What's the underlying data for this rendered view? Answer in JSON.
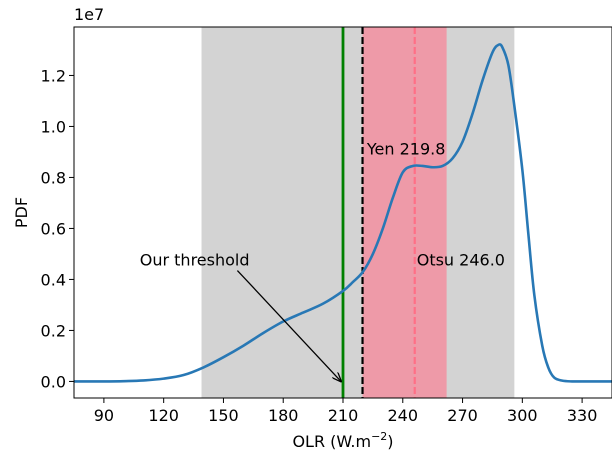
{
  "chart_data": {
    "type": "line",
    "title": "",
    "xlabel_main": "OLR (W.m",
    "xlabel_sup": "−2",
    "xlabel_close": ")",
    "ylabel": "PDF",
    "y_scale_label": "1e7",
    "xlim": [
      75,
      345
    ],
    "ylim": [
      -0.065,
      1.39
    ],
    "xticks": [
      90,
      120,
      150,
      180,
      210,
      240,
      270,
      300,
      330
    ],
    "xtick_labels": [
      "90",
      "120",
      "150",
      "180",
      "210",
      "240",
      "270",
      "300",
      "330"
    ],
    "yticks": [
      0.0,
      0.2,
      0.4,
      0.6,
      0.8,
      1.0,
      1.2
    ],
    "ytick_labels": [
      "0.0",
      "0.2",
      "0.4",
      "0.6",
      "0.8",
      "1.0",
      "1.2"
    ],
    "grid": false,
    "colors": {
      "curve": "#2878b5",
      "gray_band": "#d3d3d3",
      "pink_band": "#ee9aa8",
      "green_line": "#008000",
      "yen_line": "#000000",
      "otsu_line": "#ff6f86",
      "arrow": "#000000"
    },
    "series": [
      {
        "x": [
          75,
          90,
          100,
          110,
          120,
          130,
          140,
          150,
          160,
          170,
          180,
          190,
          200,
          210,
          215,
          220,
          225,
          230,
          235,
          240,
          245,
          250,
          255,
          260,
          265,
          270,
          275,
          280,
          285,
          288,
          290,
          293,
          296,
          300,
          303,
          306,
          310,
          313,
          316,
          320,
          325,
          330,
          345
        ],
        "y": [
          0.0,
          0.0,
          0.001,
          0.004,
          0.011,
          0.025,
          0.055,
          0.095,
          0.14,
          0.19,
          0.235,
          0.27,
          0.305,
          0.355,
          0.39,
          0.43,
          0.5,
          0.6,
          0.72,
          0.82,
          0.845,
          0.845,
          0.84,
          0.845,
          0.875,
          0.94,
          1.05,
          1.18,
          1.29,
          1.32,
          1.31,
          1.24,
          1.08,
          0.83,
          0.58,
          0.34,
          0.14,
          0.055,
          0.015,
          0.003,
          0.0,
          0.0,
          0.0
        ]
      }
    ],
    "bands": [
      {
        "x0": 139,
        "x1": 296,
        "color": "#d3d3d3"
      },
      {
        "x0": 219.8,
        "x1": 262,
        "color": "#ee9aa8"
      }
    ],
    "vlines": [
      {
        "x": 210,
        "color": "#008000",
        "style": "solid"
      },
      {
        "x": 219.8,
        "color": "#000000",
        "style": "dashed"
      },
      {
        "x": 246.0,
        "color": "#ff6f86",
        "style": "dashed"
      }
    ],
    "annotations": [
      {
        "text": "Yen 219.8",
        "x": 222,
        "y": 0.89
      },
      {
        "text": "Otsu 246.0",
        "x": 247,
        "y": 0.455
      },
      {
        "text": "Our threshold",
        "text_x": 108,
        "text_y": 0.455,
        "arrow_from": [
          157,
          0.435
        ],
        "arrow_to": [
          209,
          0.0
        ]
      }
    ]
  }
}
